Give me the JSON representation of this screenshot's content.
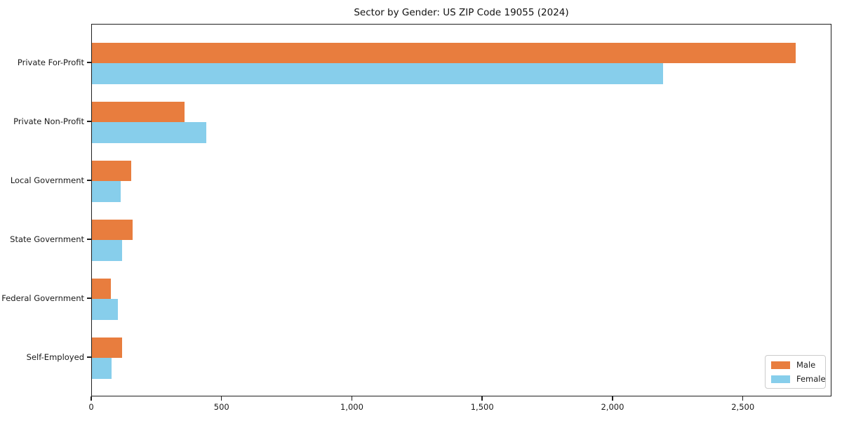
{
  "chart_data": {
    "type": "bar",
    "orientation": "horizontal",
    "title": "Sector by Gender: US ZIP Code 19055 (2024)",
    "categories": [
      "Private For-Profit",
      "Private Non-Profit",
      "Local Government",
      "State Government",
      "Federal Government",
      "Self-Employed"
    ],
    "series": [
      {
        "name": "Male",
        "color": "#e87d3e",
        "values": [
          2700,
          355,
          150,
          155,
          73,
          115
        ]
      },
      {
        "name": "Female",
        "color": "#87ceeb",
        "values": [
          2190,
          440,
          110,
          115,
          99,
          75
        ]
      }
    ],
    "xlabel": "",
    "ylabel": "",
    "xlim": [
      0,
      2840
    ],
    "x_ticks": [
      0,
      500,
      1000,
      1500,
      2000,
      2500
    ],
    "x_tick_labels": [
      "0",
      "500",
      "1,000",
      "1,500",
      "2,000",
      "2,500"
    ],
    "grid": false,
    "legend": {
      "position": "lower right",
      "entries": [
        "Male",
        "Female"
      ]
    }
  }
}
